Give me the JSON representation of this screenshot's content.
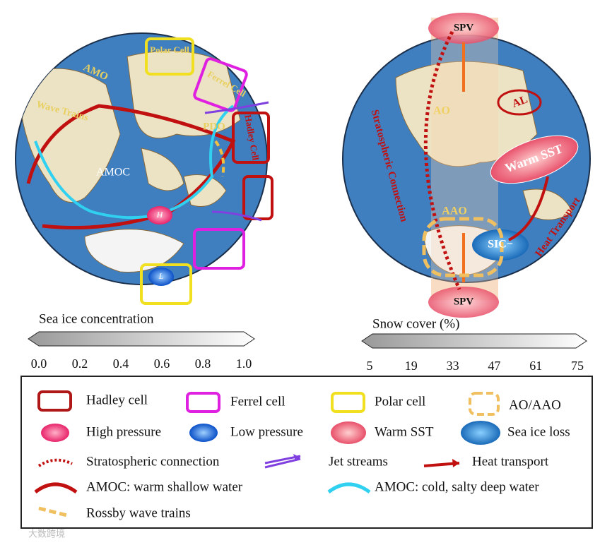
{
  "left_globe": {
    "polar_cell": "Polar Cell",
    "ferrel_cell": "Ferrel Cell",
    "amo": "AMO",
    "wave_trains": "Wave Trains",
    "pdo": "PDO",
    "hadley_cell": "Hadley Cell",
    "amoc": "AMOC",
    "high": "H",
    "low": "L"
  },
  "right_globe": {
    "spv_top": "SPV",
    "ao": "AO",
    "al": "AL",
    "warm_sst": "Warm SST",
    "strat": "Stratospheric Connection",
    "heat": "Heat Transport",
    "aao": "AAO",
    "sic": "SIC−",
    "spv_bottom": "SPV"
  },
  "colorbars": [
    {
      "title": "Sea ice concentration",
      "ticks": [
        "0.0",
        "0.2",
        "0.4",
        "0.6",
        "0.8",
        "1.0"
      ]
    },
    {
      "title": "Snow cover (%)",
      "ticks": [
        "5",
        "19",
        "33",
        "47",
        "61",
        "75"
      ]
    }
  ],
  "legend": [
    "Hadley cell",
    "Ferrel cell",
    "Polar cell",
    "AO/AAO",
    "High pressure",
    "Low pressure",
    "Warm SST",
    "Sea ice loss",
    "Stratospheric connection",
    "Jet streams",
    "Heat transport",
    "AMOC: warm shallow water",
    "AMOC: cold, salty deep water",
    "Rossby wave trains"
  ],
  "watermark": "大数跨境"
}
